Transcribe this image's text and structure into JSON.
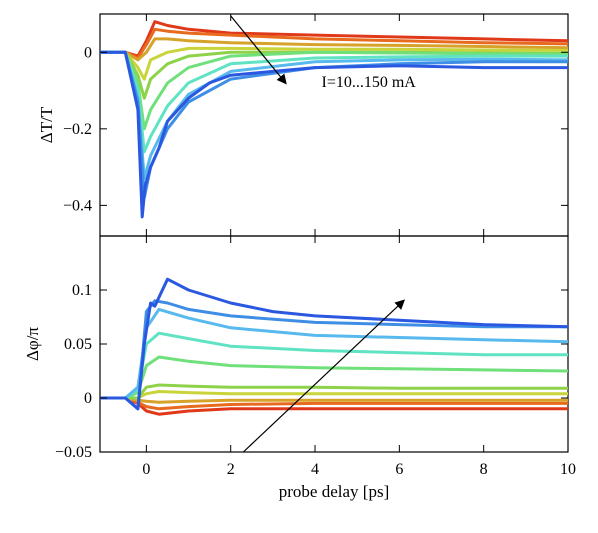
{
  "chart_data": {
    "type": "line",
    "shared_x": {
      "xlabel": "probe delay [ps]",
      "xlim": [
        -1.1,
        10
      ],
      "xticks": [
        0,
        2,
        4,
        6,
        8,
        10
      ],
      "xtick_labels": [
        "0",
        "2",
        "4",
        "6",
        "8",
        "10"
      ]
    },
    "panels": [
      {
        "id": "top",
        "ylabel": "ΔT/T",
        "ylim": [
          -0.48,
          0.1
        ],
        "yticks": [
          0,
          -0.2,
          -0.4
        ],
        "ytick_labels": [
          "0",
          "−0.2",
          "−0.4"
        ],
        "annotation": {
          "text": "I=10...150 mA",
          "arrow_from": [
            2.0,
            0.095
          ],
          "arrow_to": [
            3.3,
            -0.08
          ]
        },
        "series": [
          {
            "color": "#e0391a",
            "values": {
              "x": [
                -1.1,
                -0.5,
                -0.2,
                0,
                0.2,
                0.5,
                1,
                2,
                4,
                6,
                8,
                10
              ],
              "y": [
                0,
                0,
                -0.01,
                0.03,
                0.08,
                0.07,
                0.06,
                0.05,
                0.045,
                0.04,
                0.035,
                0.03
              ]
            }
          },
          {
            "color": "#e86a1e",
            "values": {
              "x": [
                -1.1,
                -0.5,
                -0.2,
                0,
                0.2,
                0.5,
                1,
                2,
                4,
                6,
                8,
                10
              ],
              "y": [
                0,
                0,
                -0.015,
                0.02,
                0.06,
                0.055,
                0.05,
                0.045,
                0.035,
                0.03,
                0.025,
                0.022
              ]
            }
          },
          {
            "color": "#d7a22a",
            "values": {
              "x": [
                -1.1,
                -0.5,
                -0.2,
                0,
                0.2,
                0.5,
                1,
                2,
                4,
                6,
                8,
                10
              ],
              "y": [
                0,
                0,
                -0.02,
                0.0,
                0.035,
                0.035,
                0.03,
                0.025,
                0.02,
                0.018,
                0.015,
                0.012
              ]
            }
          },
          {
            "color": "#c9d43a",
            "values": {
              "x": [
                -1.1,
                -0.5,
                -0.2,
                -0.05,
                0.1,
                0.5,
                1,
                2,
                4,
                6,
                8,
                10
              ],
              "y": [
                0,
                0,
                -0.04,
                -0.07,
                -0.02,
                0.0,
                0.01,
                0.01,
                0.008,
                0.008,
                0.006,
                0.005
              ]
            }
          },
          {
            "color": "#8ed24a",
            "values": {
              "x": [
                -1.1,
                -0.5,
                -0.2,
                -0.05,
                0.1,
                0.5,
                1,
                2,
                4,
                6,
                8,
                10
              ],
              "y": [
                0,
                0,
                -0.06,
                -0.12,
                -0.07,
                -0.03,
                -0.01,
                0.0,
                0.0,
                0.0,
                -0.002,
                -0.003
              ]
            }
          },
          {
            "color": "#6fe07a",
            "values": {
              "x": [
                -1.1,
                -0.5,
                -0.2,
                -0.05,
                0.1,
                0.5,
                1,
                2,
                4,
                6,
                8,
                10
              ],
              "y": [
                0,
                0,
                -0.08,
                -0.2,
                -0.15,
                -0.08,
                -0.04,
                -0.01,
                0.0,
                -0.002,
                -0.004,
                -0.005
              ]
            }
          },
          {
            "color": "#60e3c3",
            "values": {
              "x": [
                -1.1,
                -0.5,
                -0.2,
                -0.05,
                0.1,
                0.5,
                1,
                2,
                4,
                6,
                8,
                10
              ],
              "y": [
                0,
                0,
                -0.1,
                -0.26,
                -0.22,
                -0.14,
                -0.08,
                -0.03,
                -0.015,
                -0.012,
                -0.01,
                -0.01
              ]
            }
          },
          {
            "color": "#58b9ee",
            "values": {
              "x": [
                -1.1,
                -0.5,
                -0.2,
                -0.05,
                0.1,
                0.5,
                1,
                2,
                4,
                6,
                8,
                10
              ],
              "y": [
                0,
                0,
                -0.12,
                -0.33,
                -0.27,
                -0.18,
                -0.11,
                -0.05,
                -0.025,
                -0.02,
                -0.018,
                -0.02
              ]
            }
          },
          {
            "color": "#3f8ee6",
            "values": {
              "x": [
                -1.1,
                -0.5,
                -0.2,
                -0.05,
                0.1,
                0.5,
                1,
                2,
                4,
                6,
                8,
                10
              ],
              "y": [
                0,
                0,
                -0.13,
                -0.38,
                -0.3,
                -0.2,
                -0.13,
                -0.07,
                -0.04,
                -0.03,
                -0.025,
                -0.025
              ]
            }
          },
          {
            "color": "#2a58e0",
            "values": {
              "x": [
                -1.1,
                -0.5,
                -0.2,
                -0.1,
                -0.03,
                0.1,
                0.3,
                0.5,
                1,
                1.5,
                2,
                3,
                4,
                6,
                8,
                10
              ],
              "y": [
                0,
                0,
                -0.15,
                -0.43,
                -0.35,
                -0.3,
                -0.25,
                -0.18,
                -0.12,
                -0.08,
                -0.06,
                -0.05,
                -0.04,
                -0.035,
                -0.04,
                -0.04
              ]
            }
          }
        ]
      },
      {
        "id": "bottom",
        "ylabel": "Δφ/π",
        "ylim": [
          -0.05,
          0.15
        ],
        "yticks": [
          -0.05,
          0,
          0.05,
          0.1
        ],
        "ytick_labels": [
          "−0.05",
          "0",
          "0.05",
          "0.1"
        ],
        "annotation": {
          "text": "",
          "arrow_from": [
            2.3,
            -0.05
          ],
          "arrow_to": [
            6.1,
            0.09
          ]
        },
        "series": [
          {
            "color": "#e0391a",
            "values": {
              "x": [
                -1.1,
                -0.5,
                -0.2,
                0,
                0.3,
                1,
                2,
                4,
                6,
                8,
                10
              ],
              "y": [
                0,
                0,
                -0.005,
                -0.012,
                -0.015,
                -0.012,
                -0.01,
                -0.01,
                -0.01,
                -0.01,
                -0.01
              ]
            }
          },
          {
            "color": "#e86a1e",
            "values": {
              "x": [
                -1.1,
                -0.5,
                -0.2,
                0,
                0.3,
                1,
                2,
                4,
                6,
                8,
                10
              ],
              "y": [
                0,
                0,
                -0.004,
                -0.008,
                -0.01,
                -0.008,
                -0.006,
                -0.005,
                -0.005,
                -0.005,
                -0.005
              ]
            }
          },
          {
            "color": "#d7a22a",
            "values": {
              "x": [
                -1.1,
                -0.5,
                -0.2,
                0,
                0.3,
                1,
                2,
                4,
                6,
                8,
                10
              ],
              "y": [
                0,
                0,
                -0.002,
                -0.003,
                -0.004,
                -0.003,
                -0.002,
                -0.002,
                -0.002,
                -0.002,
                -0.002
              ]
            }
          },
          {
            "color": "#c9d43a",
            "values": {
              "x": [
                -1.1,
                -0.5,
                -0.2,
                0,
                0.3,
                1,
                2,
                4,
                6,
                8,
                10
              ],
              "y": [
                0,
                0,
                0.0,
                0.004,
                0.006,
                0.005,
                0.004,
                0.004,
                0.004,
                0.004,
                0.004
              ]
            }
          },
          {
            "color": "#8ed24a",
            "values": {
              "x": [
                -1.1,
                -0.5,
                -0.2,
                0,
                0.3,
                1,
                2,
                4,
                6,
                8,
                10
              ],
              "y": [
                0,
                0,
                0.0,
                0.01,
                0.012,
                0.011,
                0.01,
                0.01,
                0.009,
                0.009,
                0.009
              ]
            }
          },
          {
            "color": "#6fe07a",
            "values": {
              "x": [
                -1.1,
                -0.5,
                -0.2,
                0,
                0.3,
                1,
                2,
                4,
                6,
                8,
                10
              ],
              "y": [
                0,
                0,
                0.005,
                0.03,
                0.038,
                0.034,
                0.03,
                0.028,
                0.027,
                0.026,
                0.025
              ]
            }
          },
          {
            "color": "#60e3c3",
            "values": {
              "x": [
                -1.1,
                -0.5,
                -0.2,
                0,
                0.3,
                1,
                2,
                4,
                6,
                8,
                10
              ],
              "y": [
                0,
                0,
                0.008,
                0.05,
                0.06,
                0.055,
                0.048,
                0.044,
                0.042,
                0.04,
                0.04
              ]
            }
          },
          {
            "color": "#58b9ee",
            "values": {
              "x": [
                -1.1,
                -0.5,
                -0.2,
                0,
                0.3,
                1,
                2,
                4,
                6,
                8,
                10
              ],
              "y": [
                0,
                0,
                0.01,
                0.065,
                0.082,
                0.074,
                0.065,
                0.058,
                0.056,
                0.054,
                0.052
              ]
            }
          },
          {
            "color": "#3f8ee6",
            "values": {
              "x": [
                -1.1,
                -0.5,
                -0.2,
                0,
                0.2,
                0.5,
                1,
                2,
                4,
                6,
                8,
                10
              ],
              "y": [
                0,
                0,
                -0.01,
                0.08,
                0.09,
                0.088,
                0.082,
                0.076,
                0.07,
                0.068,
                0.066,
                0.066
              ]
            }
          },
          {
            "color": "#2a58e0",
            "values": {
              "x": [
                -1.1,
                -0.5,
                -0.2,
                -0.05,
                0.1,
                0.2,
                0.5,
                1,
                2,
                3,
                4,
                6,
                8,
                10
              ],
              "y": [
                0,
                0,
                -0.01,
                0.05,
                0.088,
                0.085,
                0.11,
                0.1,
                0.088,
                0.08,
                0.076,
                0.072,
                0.068,
                0.066
              ]
            }
          }
        ]
      }
    ]
  }
}
